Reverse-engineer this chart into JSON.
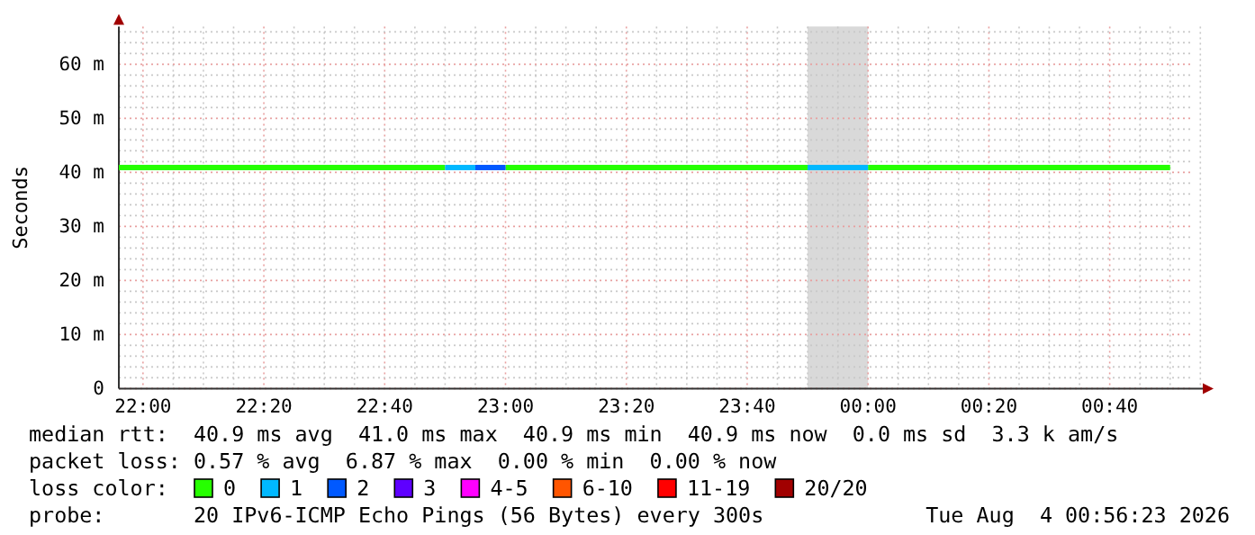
{
  "chart_data": {
    "type": "line",
    "ylabel": "Seconds",
    "legend_title": "loss color:",
    "legend": "bottom",
    "grid": true,
    "line_style": "solid",
    "marker": "none",
    "xlim": [
      "2026-08-03T21:56",
      "2026-08-04T00:56"
    ],
    "ylim": [
      0,
      67
    ],
    "xticks": [
      {
        "value": "2026-08-03T22:00",
        "label": "22:00"
      },
      {
        "value": "2026-08-03T22:05",
        "label": null
      },
      {
        "value": "2026-08-03T22:10",
        "label": null
      },
      {
        "value": "2026-08-03T22:15",
        "label": null
      },
      {
        "value": "2026-08-03T22:20",
        "label": "22:20"
      },
      {
        "value": "2026-08-03T22:25",
        "label": null
      },
      {
        "value": "2026-08-03T22:30",
        "label": null
      },
      {
        "value": "2026-08-03T22:35",
        "label": null
      },
      {
        "value": "2026-08-03T22:40",
        "label": "22:40"
      },
      {
        "value": "2026-08-03T22:45",
        "label": null
      },
      {
        "value": "2026-08-03T22:50",
        "label": null
      },
      {
        "value": "2026-08-03T22:55",
        "label": null
      },
      {
        "value": "2026-08-03T23:00",
        "label": "23:00"
      },
      {
        "value": "2026-08-03T23:05",
        "label": null
      },
      {
        "value": "2026-08-03T23:10",
        "label": null
      },
      {
        "value": "2026-08-03T23:15",
        "label": null
      },
      {
        "value": "2026-08-03T23:20",
        "label": "23:20"
      },
      {
        "value": "2026-08-03T23:25",
        "label": null
      },
      {
        "value": "2026-08-03T23:30",
        "label": null
      },
      {
        "value": "2026-08-03T23:35",
        "label": null
      },
      {
        "value": "2026-08-03T23:40",
        "label": "23:40"
      },
      {
        "value": "2026-08-03T23:45",
        "label": null
      },
      {
        "value": "2026-08-03T23:50",
        "label": null
      },
      {
        "value": "2026-08-03T23:55",
        "label": null
      },
      {
        "value": "2026-08-04T00:00",
        "label": "00:00"
      },
      {
        "value": "2026-08-04T00:05",
        "label": null
      },
      {
        "value": "2026-08-04T00:10",
        "label": null
      },
      {
        "value": "2026-08-04T00:15",
        "label": null
      },
      {
        "value": "2026-08-04T00:20",
        "label": "00:20"
      },
      {
        "value": "2026-08-04T00:25",
        "label": null
      },
      {
        "value": "2026-08-04T00:30",
        "label": null
      },
      {
        "value": "2026-08-04T00:35",
        "label": null
      },
      {
        "value": "2026-08-04T00:40",
        "label": "00:40"
      },
      {
        "value": "2026-08-04T00:45",
        "label": null
      },
      {
        "value": "2026-08-04T00:50",
        "label": null
      },
      {
        "value": "2026-08-04T00:55",
        "label": null
      }
    ],
    "yticks": [
      0,
      {
        "value": 2,
        "label": null
      },
      {
        "value": 4,
        "label": null
      },
      {
        "value": 6,
        "label": null
      },
      {
        "value": 8,
        "label": null
      },
      {
        "value": 10,
        "label": "10 m"
      },
      {
        "value": 12,
        "label": null
      },
      {
        "value": 14,
        "label": null
      },
      {
        "value": 16,
        "label": null
      },
      {
        "value": 18,
        "label": null
      },
      {
        "value": 20,
        "label": "20 m"
      },
      {
        "value": 22,
        "label": null
      },
      {
        "value": 24,
        "label": null
      },
      {
        "value": 26,
        "label": null
      },
      {
        "value": 28,
        "label": null
      },
      {
        "value": 30,
        "label": "30 m"
      },
      {
        "value": 32,
        "label": null
      },
      {
        "value": 34,
        "label": null
      },
      {
        "value": 36,
        "label": null
      },
      {
        "value": 38,
        "label": null
      },
      {
        "value": 40,
        "label": "40 m"
      },
      {
        "value": 42,
        "label": null
      },
      {
        "value": 44,
        "label": null
      },
      {
        "value": 46,
        "label": null
      },
      {
        "value": 48,
        "label": null
      },
      {
        "value": 50,
        "label": "50 m"
      },
      {
        "value": 52,
        "label": null
      },
      {
        "value": 54,
        "label": null
      },
      {
        "value": 56,
        "label": null
      },
      {
        "value": 58,
        "label": null
      },
      {
        "value": 60,
        "label": "60 m"
      },
      {
        "value": 62,
        "label": null
      },
      {
        "value": 64,
        "label": null
      },
      {
        "value": 66,
        "label": null
      }
    ],
    "bands": [
      {
        "axis": "x",
        "from": "2026-08-03T23:50",
        "to": "2026-08-04T00:00",
        "color": "#d9d9d9"
      }
    ],
    "series": [
      {
        "name": "0",
        "color": "#26ff00",
        "x": [
          "2026-08-03T21:56",
          "2026-08-03T22:50",
          "2026-08-03T22:54",
          "2026-08-03T23:00",
          "2026-08-03T23:50",
          "2026-08-03T23:54",
          "2026-08-04T00:00",
          "2026-08-04T00:50"
        ],
        "values": [
          40.9,
          40.9,
          null,
          40.9,
          40.9,
          null,
          40.9,
          40.9
        ]
      },
      {
        "name": "1",
        "color": "#00b8ff",
        "x": [
          "2026-08-03T22:50",
          "2026-08-03T22:55",
          "2026-08-03T22:57",
          "2026-08-03T23:50",
          "2026-08-04T00:00"
        ],
        "values": [
          40.9,
          40.9,
          null,
          40.9,
          40.9
        ]
      },
      {
        "name": "2",
        "color": "#0059ff",
        "x": [
          "2026-08-03T22:55",
          "2026-08-03T23:00"
        ],
        "values": [
          40.9,
          40.9
        ]
      },
      {
        "name": "3",
        "color": "#5e00ff"
      },
      {
        "name": "4-5",
        "color": "#ff00ff"
      },
      {
        "name": "6-10",
        "color": "#ff5500"
      },
      {
        "name": "11-19",
        "color": "#ff0000"
      },
      {
        "name": "20/20",
        "color": "#a10000"
      }
    ],
    "annotations": [
      "median rtt:  40.9 ms avg  41.0 ms max  40.9 ms min  40.9 ms now  0.0 ms sd  3.3 k am/s",
      "packet loss: 0.57 % avg  6.87 % max  0.00 % min  0.00 % now",
      "probe:       20 IPv6-ICMP Echo Pings (56 Bytes) every 300s",
      "Tue Aug  4 00:56:23 2026"
    ]
  }
}
